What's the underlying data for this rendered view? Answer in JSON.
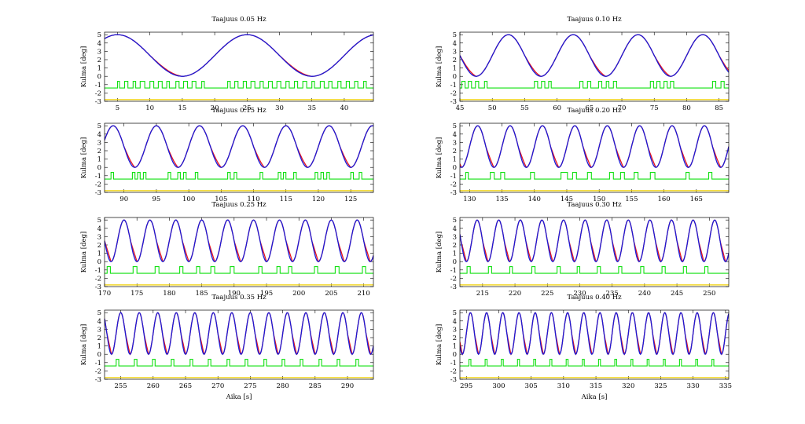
{
  "figure": {
    "background": "#ffffff"
  },
  "series_colors": {
    "measured": "#e8141e",
    "reference": "#1a1ad6",
    "signal": "#11e011",
    "baseline": "#f0d000"
  },
  "chart_data": [
    {
      "type": "line",
      "title": "Taajuus 0.05 Hz",
      "freq": 0.05,
      "xlim": [
        3,
        44.5
      ],
      "ylim": [
        -3,
        5.3
      ],
      "xticks": [
        5,
        10,
        15,
        20,
        25,
        30,
        35,
        40
      ],
      "yticks": [
        -3,
        -2,
        -1,
        0,
        1,
        2,
        3,
        4,
        5
      ],
      "ylabel": "Kulma [deg]",
      "xlabel": "",
      "grid": false,
      "signal_segments": [
        [
          5.0,
          5.3
        ],
        [
          6.1,
          6.6
        ],
        [
          7.4,
          7.8
        ],
        [
          8.5,
          9.2
        ],
        [
          10.0,
          10.6
        ],
        [
          11.3,
          11.9
        ],
        [
          12.6,
          13.0
        ],
        [
          14.0,
          14.5
        ],
        [
          15.2,
          15.8
        ],
        [
          16.5,
          17.1
        ],
        [
          18.0,
          18.4
        ],
        [
          22.0,
          22.4
        ],
        [
          23.1,
          23.6
        ],
        [
          24.4,
          24.9
        ],
        [
          25.6,
          26.2
        ],
        [
          27.0,
          27.5
        ],
        [
          28.3,
          28.9
        ],
        [
          29.6,
          30.2
        ],
        [
          31.0,
          31.5
        ],
        [
          32.3,
          32.8
        ],
        [
          33.6,
          34.2
        ],
        [
          35.0,
          35.4
        ],
        [
          36.3,
          36.9
        ],
        [
          37.6,
          38.1
        ],
        [
          39.0,
          39.5
        ],
        [
          40.3,
          40.8
        ],
        [
          41.6,
          42.1
        ],
        [
          43.0,
          43.4
        ]
      ]
    },
    {
      "type": "line",
      "title": "Taajuus 0.10 Hz",
      "freq": 0.1,
      "xlim": [
        45,
        86.5
      ],
      "ylim": [
        -3,
        5.3
      ],
      "xticks": [
        45,
        50,
        55,
        60,
        65,
        70,
        75,
        80,
        85
      ],
      "yticks": [
        -3,
        -2,
        -1,
        0,
        1,
        2,
        3,
        4,
        5
      ],
      "ylabel": "Kulma [deg]",
      "xlabel": "",
      "grid": false,
      "signal_segments": [
        [
          45.3,
          45.8
        ],
        [
          46.3,
          46.8
        ],
        [
          47.4,
          47.9
        ],
        [
          48.8,
          49.2
        ],
        [
          56.5,
          57.0
        ],
        [
          57.6,
          58.1
        ],
        [
          58.7,
          59.1
        ],
        [
          63.5,
          64.0
        ],
        [
          64.7,
          65.2
        ],
        [
          66.4,
          66.9
        ],
        [
          67.6,
          68.0
        ],
        [
          68.7,
          69.2
        ],
        [
          74.4,
          74.9
        ],
        [
          75.4,
          75.9
        ],
        [
          76.5,
          77.0
        ],
        [
          77.5,
          78.0
        ],
        [
          84.0,
          84.5
        ],
        [
          85.3,
          85.8
        ]
      ]
    },
    {
      "type": "line",
      "title": "Taajuus 0.15 Hz",
      "freq": 0.15,
      "xlim": [
        87,
        128.5
      ],
      "ylim": [
        -3,
        5.3
      ],
      "xticks": [
        90,
        95,
        100,
        105,
        110,
        115,
        120,
        125
      ],
      "yticks": [
        -3,
        -2,
        -1,
        0,
        1,
        2,
        3,
        4,
        5
      ],
      "ylabel": "Kulma [deg]",
      "xlabel": "",
      "grid": false,
      "signal_segments": [
        [
          88.0,
          88.4
        ],
        [
          91.3,
          91.7
        ],
        [
          92.1,
          92.5
        ],
        [
          93.0,
          93.4
        ],
        [
          96.8,
          97.2
        ],
        [
          98.3,
          98.7
        ],
        [
          99.2,
          99.6
        ],
        [
          101.0,
          101.4
        ],
        [
          106.0,
          106.4
        ],
        [
          107.0,
          107.4
        ],
        [
          111.0,
          111.4
        ],
        [
          113.8,
          114.2
        ],
        [
          114.6,
          115.0
        ],
        [
          116.2,
          116.6
        ],
        [
          119.5,
          119.9
        ],
        [
          120.4,
          120.8
        ],
        [
          121.3,
          121.7
        ],
        [
          125.0,
          125.4
        ],
        [
          126.3,
          126.7
        ]
      ]
    },
    {
      "type": "line",
      "title": "Taajuus 0.20 Hz",
      "freq": 0.2,
      "xlim": [
        128.5,
        170
      ],
      "ylim": [
        -3,
        5.3
      ],
      "xticks": [
        130,
        135,
        140,
        145,
        150,
        155,
        160,
        165
      ],
      "yticks": [
        -3,
        -2,
        -1,
        0,
        1,
        2,
        3,
        4,
        5
      ],
      "ylabel": "Kulma [deg]",
      "xlabel": "",
      "grid": false,
      "signal_segments": [
        [
          129.4,
          129.8
        ],
        [
          133.2,
          133.8
        ],
        [
          134.8,
          135.4
        ],
        [
          139.4,
          140.0
        ],
        [
          144.1,
          145.1
        ],
        [
          145.9,
          146.5
        ],
        [
          148.2,
          148.8
        ],
        [
          151.6,
          152.2
        ],
        [
          153.3,
          153.9
        ],
        [
          155.4,
          156.0
        ],
        [
          157.9,
          158.6
        ],
        [
          163.4,
          163.9
        ],
        [
          166.9,
          167.4
        ]
      ]
    },
    {
      "type": "line",
      "title": "Taajuus 0.25 Hz",
      "freq": 0.25,
      "xlim": [
        170,
        211.5
      ],
      "ylim": [
        -3,
        5.3
      ],
      "xticks": [
        170,
        175,
        180,
        185,
        190,
        195,
        200,
        205,
        210
      ],
      "yticks": [
        -3,
        -2,
        -1,
        0,
        1,
        2,
        3,
        4,
        5
      ],
      "ylabel": "Kulma [deg]",
      "xlabel": "",
      "grid": false,
      "signal_segments": [
        [
          170.4,
          170.9
        ],
        [
          174.4,
          175.0
        ],
        [
          177.8,
          178.4
        ],
        [
          181.6,
          182.1
        ],
        [
          184.2,
          184.7
        ],
        [
          186.4,
          187.0
        ],
        [
          189.4,
          190.0
        ],
        [
          193.8,
          194.3
        ],
        [
          196.6,
          197.1
        ],
        [
          198.4,
          198.9
        ],
        [
          202.4,
          202.9
        ],
        [
          205.6,
          206.2
        ],
        [
          209.8,
          210.3
        ]
      ]
    },
    {
      "type": "line",
      "title": "Taajuus 0.30 Hz",
      "freq": 0.3,
      "xlim": [
        211.5,
        253
      ],
      "ylim": [
        -3,
        5.3
      ],
      "xticks": [
        215,
        220,
        225,
        230,
        235,
        240,
        245,
        250
      ],
      "yticks": [
        -3,
        -2,
        -1,
        0,
        1,
        2,
        3,
        4,
        5
      ],
      "ylabel": "Kulma [deg]",
      "xlabel": "",
      "grid": false,
      "signal_segments": [
        [
          212.6,
          213.1
        ],
        [
          215.9,
          216.4
        ],
        [
          219.2,
          219.6
        ],
        [
          222.6,
          223.1
        ],
        [
          226.5,
          227.0
        ],
        [
          229.6,
          230.0
        ],
        [
          232.7,
          233.2
        ],
        [
          236.0,
          236.5
        ],
        [
          239.4,
          239.9
        ],
        [
          242.7,
          243.2
        ],
        [
          246.0,
          246.5
        ],
        [
          249.3,
          249.8
        ]
      ]
    },
    {
      "type": "line",
      "title": "Taajuus 0.35 Hz",
      "freq": 0.35,
      "xlim": [
        252.5,
        294
      ],
      "ylim": [
        -3,
        5.3
      ],
      "xticks": [
        255,
        260,
        265,
        270,
        275,
        280,
        285,
        290
      ],
      "yticks": [
        -3,
        -2,
        -1,
        0,
        1,
        2,
        3,
        4,
        5
      ],
      "ylabel": "Kulma [deg]",
      "xlabel": "Aika [s]",
      "grid": false,
      "signal_segments": [
        [
          254.3,
          254.7
        ],
        [
          257.1,
          257.5
        ],
        [
          259.9,
          260.3
        ],
        [
          262.8,
          263.2
        ],
        [
          265.7,
          266.1
        ],
        [
          268.5,
          268.9
        ],
        [
          271.4,
          271.8
        ],
        [
          274.2,
          274.6
        ],
        [
          277.1,
          277.5
        ],
        [
          279.9,
          280.3
        ],
        [
          282.7,
          283.1
        ],
        [
          285.6,
          286.0
        ],
        [
          288.4,
          288.8
        ],
        [
          291.3,
          291.7
        ]
      ]
    },
    {
      "type": "line",
      "title": "Taajuus 0.40 Hz",
      "freq": 0.4,
      "xlim": [
        294,
        335.5
      ],
      "ylim": [
        -3,
        5.3
      ],
      "xticks": [
        295,
        300,
        305,
        310,
        315,
        320,
        325,
        330,
        335
      ],
      "yticks": [
        -3,
        -2,
        -1,
        0,
        1,
        2,
        3,
        4,
        5
      ],
      "ylabel": "Kulma [deg]",
      "xlabel": "Aika [s]",
      "grid": false,
      "signal_segments": [
        [
          295.4,
          295.7
        ],
        [
          297.9,
          298.2
        ],
        [
          300.4,
          300.7
        ],
        [
          302.9,
          303.2
        ],
        [
          305.4,
          305.7
        ],
        [
          307.9,
          308.2
        ],
        [
          310.4,
          310.7
        ],
        [
          312.9,
          313.2
        ],
        [
          315.4,
          315.7
        ],
        [
          317.9,
          318.2
        ],
        [
          320.4,
          320.7
        ],
        [
          322.9,
          323.2
        ],
        [
          325.4,
          325.7
        ],
        [
          327.9,
          328.2
        ],
        [
          330.4,
          330.7
        ],
        [
          332.9,
          333.2
        ]
      ]
    }
  ]
}
